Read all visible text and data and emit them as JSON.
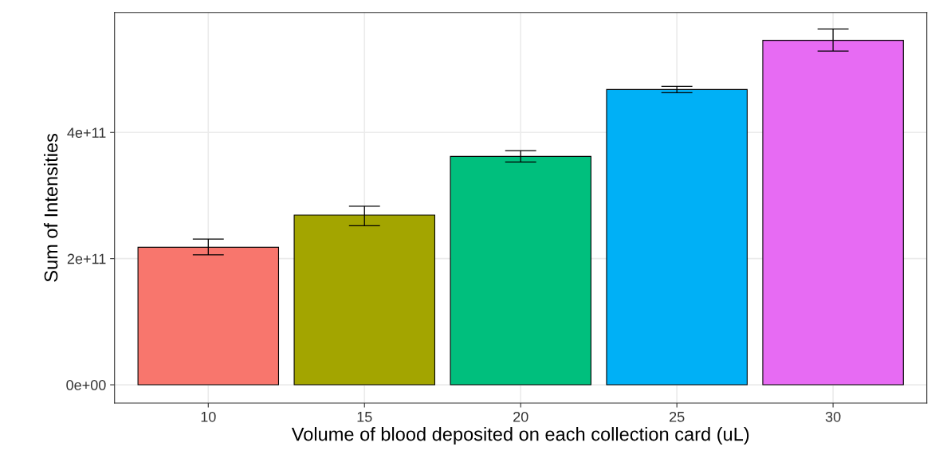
{
  "chart_data": {
    "type": "bar",
    "xlabel": "Volume of blood deposited on each collection card (uL)",
    "ylabel": "Sum of Intensities",
    "categories": [
      "10",
      "15",
      "20",
      "25",
      "30"
    ],
    "values": [
      218000000000,
      269000000000,
      362000000000,
      468000000000,
      546000000000
    ],
    "colors": [
      "#f8766d",
      "#a3a500",
      "#00bf7d",
      "#00b0f6",
      "#e76bf3"
    ],
    "errors": [
      [
        206000000000,
        231000000000
      ],
      [
        252000000000,
        283000000000
      ],
      [
        353000000000,
        371000000000
      ],
      [
        463000000000,
        473000000000
      ],
      [
        529000000000,
        564000000000
      ]
    ],
    "ylim": [
      -29000000000,
      590000000000
    ],
    "yticks": [
      {
        "value": 0,
        "label": "0e+00"
      },
      {
        "value": 200000000000,
        "label": "2e+11"
      },
      {
        "value": 400000000000,
        "label": "4e+11"
      }
    ],
    "grid": true
  }
}
